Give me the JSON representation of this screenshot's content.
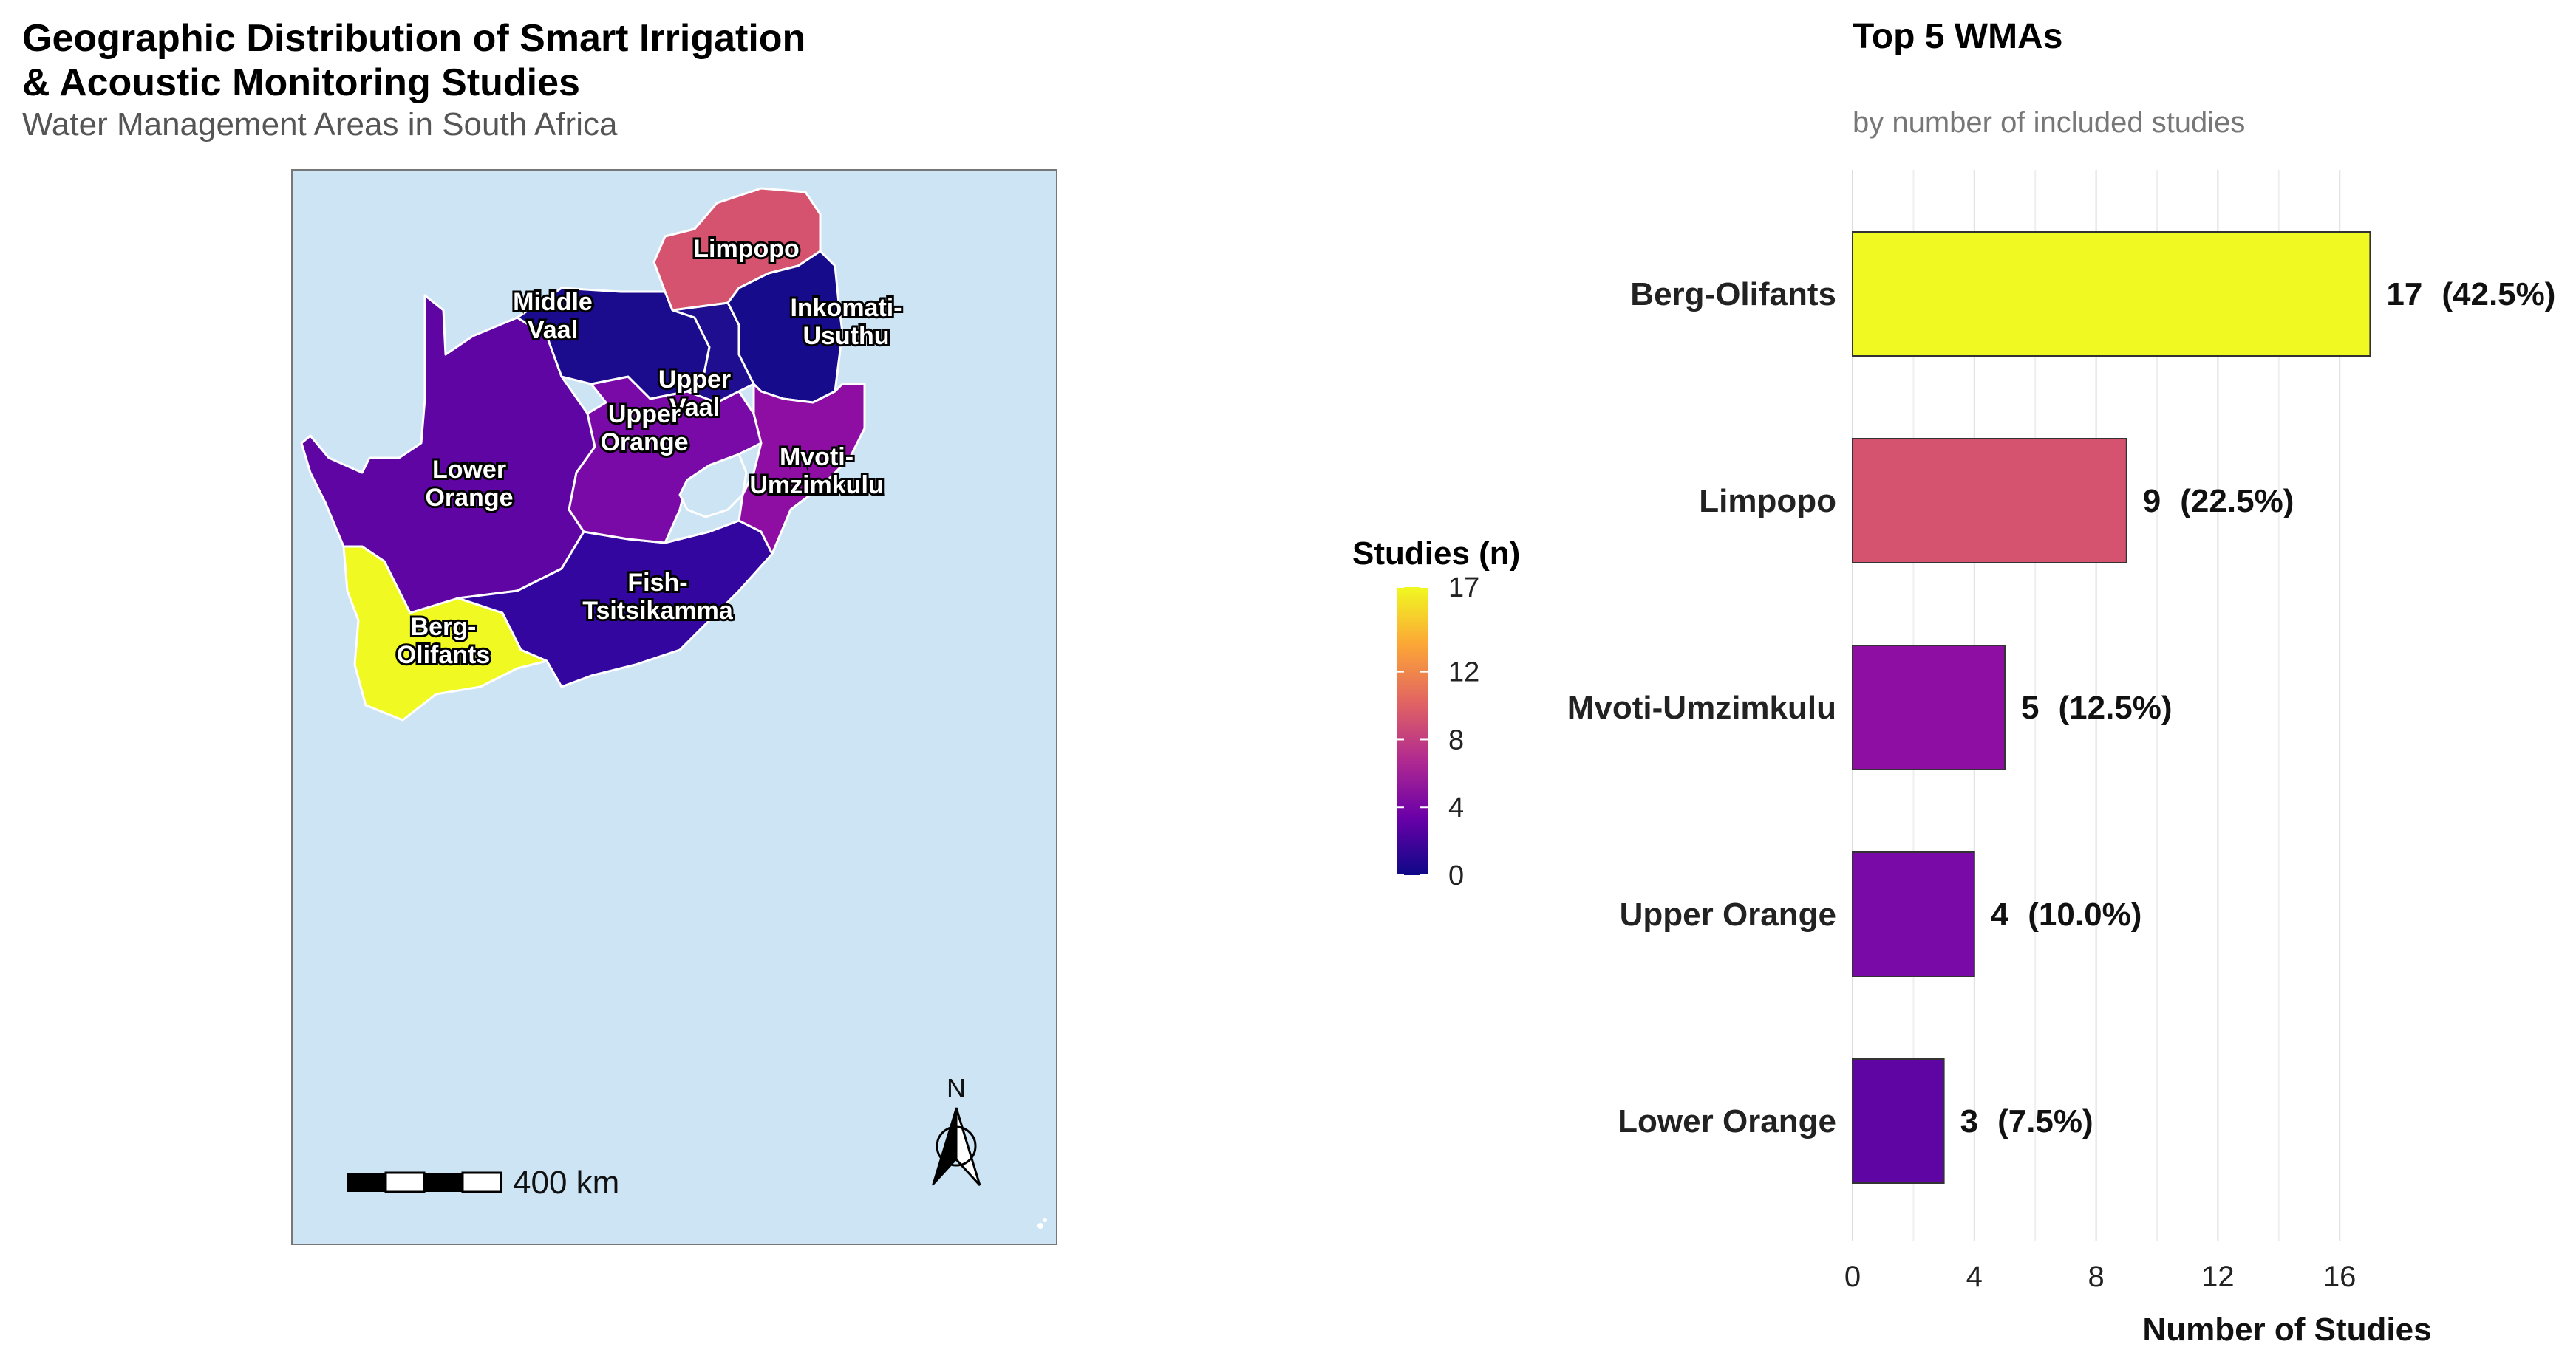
{
  "map": {
    "title_line1": "Geographic Distribution of Smart Irrigation",
    "title_line2": "& Acoustic Monitoring Studies",
    "subtitle": "Water Management Areas in South Africa",
    "ocean_color": "#cde4f5",
    "scale_bar_label": "400 km",
    "north_label": "N",
    "regions": [
      {
        "name": "Limpopo",
        "studies": 9,
        "color": "#d5536f"
      },
      {
        "name": "Inkomati-Usuthu",
        "studies": 0,
        "color": "#160b8a"
      },
      {
        "name": "Middle Vaal",
        "studies": 0,
        "color": "#1a0c8c"
      },
      {
        "name": "Upper Vaal",
        "studies": 0,
        "color": "#200e90"
      },
      {
        "name": "Upper Orange",
        "studies": 4,
        "color": "#7a0aa8"
      },
      {
        "name": "Mvoti-Umzimkulu",
        "studies": 5,
        "color": "#8e0ea4"
      },
      {
        "name": "Lower Orange",
        "studies": 3,
        "color": "#5e05a4"
      },
      {
        "name": "Fish-Tsitsikamma",
        "studies": 1,
        "color": "#3406a0"
      },
      {
        "name": "Berg-Olifants",
        "studies": 17,
        "color": "#f0f921"
      }
    ],
    "label_lines": {
      "limpopo": [
        "Limpopo"
      ],
      "inkomati": [
        "Inkomati-",
        "Usuthu"
      ],
      "middle_vaal": [
        "Middle",
        "Vaal"
      ],
      "upper_vaal": [
        "Upper",
        "Vaal"
      ],
      "upper_orange": [
        "Upper",
        "Orange"
      ],
      "mvoti": [
        "Mvoti-",
        "Umzimkulu"
      ],
      "lower_orange": [
        "Lower",
        "Orange"
      ],
      "fish": [
        "Fish-",
        "Tsitsikamma"
      ],
      "berg": [
        "Berg-",
        "Olifants"
      ]
    }
  },
  "legend": {
    "title": "Studies (n)",
    "ticks": [
      "17",
      "12",
      "8",
      "4",
      "0"
    ],
    "tick_values": [
      17,
      12,
      8,
      4,
      0
    ],
    "range": [
      0,
      17
    ],
    "colormap": [
      "#0d0887",
      "#6a00a8",
      "#b12a90",
      "#e16462",
      "#fca636",
      "#f0f921"
    ]
  },
  "chart_data": {
    "type": "bar",
    "orientation": "horizontal",
    "title": "Top 5 WMAs",
    "subtitle": "by number of included studies",
    "xlabel": "Number of Studies",
    "categories": [
      "Berg-Olifants",
      "Limpopo",
      "Mvoti-Umzimkulu",
      "Upper Orange",
      "Lower Orange"
    ],
    "values": [
      17,
      9,
      5,
      4,
      3
    ],
    "percent_labels": [
      "(42.5%)",
      "(22.5%)",
      "(12.5%)",
      "(10.0%)",
      "(7.5%)"
    ],
    "value_labels": [
      "17",
      "9",
      "5",
      "4",
      "3"
    ],
    "colors": [
      "#f0f921",
      "#d5536f",
      "#8e0ea4",
      "#7a0aa8",
      "#5e05a4"
    ],
    "xticks": [
      "0",
      "4",
      "8",
      "12",
      "16"
    ],
    "xtick_values": [
      0,
      4,
      8,
      12,
      16
    ],
    "xlim": [
      0,
      21
    ],
    "grid": true
  }
}
